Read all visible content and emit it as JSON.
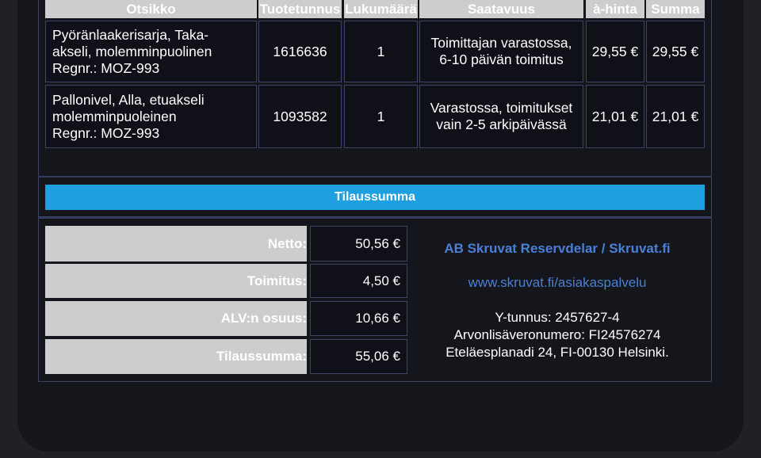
{
  "table": {
    "headers": [
      "Otsikko",
      "Tuotetunnus",
      "Lukumäärä",
      "Saatavuus",
      "à-hinta",
      "Summa"
    ],
    "rows": [
      {
        "title_lines": [
          "Pyöränlaakerisarja, Taka-",
          "akseli, molemminpuolinen",
          "Regnr.: MOZ-993"
        ],
        "code": "1616636",
        "qty": "1",
        "availability_lines": [
          "Toimittajan varastossa,",
          "6-10 päivän toimitus"
        ],
        "unit_price": "29,55 €",
        "sum": "29,55 €"
      },
      {
        "title_lines": [
          "Pallonivel, Alla, etuakseli",
          "molemminpuoleinen",
          "Regnr.: MOZ-993"
        ],
        "code": "1093582",
        "qty": "1",
        "availability_lines": [
          "Varastossa, toimitukset",
          "vain 2-5 arkipäivässä"
        ],
        "unit_price": "21,01 €",
        "sum": "21,01 €"
      }
    ]
  },
  "summary": {
    "title": "Tilaussumma",
    "rows": [
      {
        "label": "Netto:",
        "value": "50,56 €"
      },
      {
        "label": "Toimitus:",
        "value": "4,50 €"
      },
      {
        "label": "ALV:n osuus:",
        "value": "10,66 €"
      },
      {
        "label": "Tilaussumma:",
        "value": "55,06 €"
      }
    ]
  },
  "company": {
    "name": "AB Skruvat Reservdelar / Skruvat.fi",
    "link": "www.skruvat.fi/asiakaspalvelu",
    "business_id": "Y-tunnus: 2457627-4",
    "vat_number": "Arvonlisäveronumero: FI24576274",
    "address": "Eteläesplanadi 24, FI-00130 Helsinki."
  },
  "colors": {
    "accent": "#1e9fe0",
    "link": "#4a7fd6",
    "header_gray": "#cdcdcd"
  }
}
